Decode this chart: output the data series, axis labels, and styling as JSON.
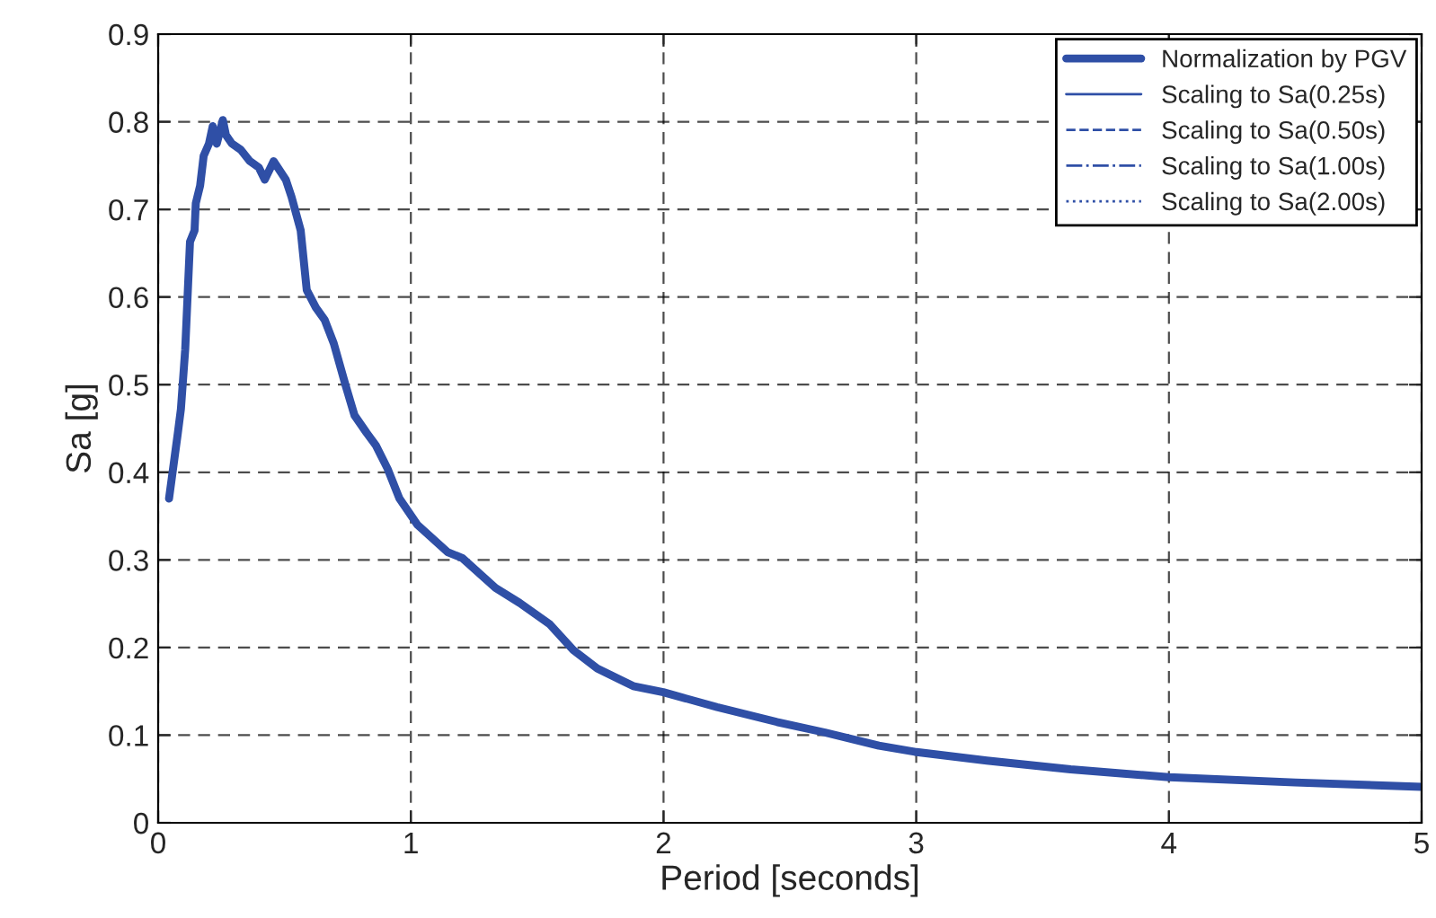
{
  "chart_data": {
    "type": "line",
    "xlabel": "Period [seconds]",
    "ylabel": "Sa [g]",
    "xlim": [
      0,
      5
    ],
    "xticks": [
      0,
      1,
      2,
      3,
      4,
      5
    ],
    "ylim": [
      0,
      0.9
    ],
    "yticks": [
      0,
      0.1,
      0.2,
      0.3,
      0.4,
      0.5,
      0.6,
      0.7,
      0.8,
      0.9
    ],
    "grid": true,
    "legend": "top right",
    "series": [
      {
        "name": "Normalization by PGV",
        "color": "#2f4fa6",
        "line_style": "solid",
        "x": [
          0.043,
          0.078,
          0.09,
          0.107,
          0.126,
          0.144,
          0.149,
          0.166,
          0.18,
          0.201,
          0.216,
          0.232,
          0.256,
          0.268,
          0.292,
          0.327,
          0.363,
          0.398,
          0.422,
          0.457,
          0.505,
          0.528,
          0.564,
          0.588,
          0.624,
          0.659,
          0.695,
          0.742,
          0.777,
          0.825,
          0.861,
          0.908,
          0.955,
          1.026,
          1.145,
          1.204,
          1.335,
          1.43,
          1.548,
          1.643,
          1.738,
          1.88,
          1.999,
          2.212,
          2.449,
          2.639,
          2.852,
          2.994,
          3.279,
          3.611,
          4.0,
          4.5,
          5.0
        ],
        "values": [
          0.37,
          0.445,
          0.472,
          0.54,
          0.663,
          0.676,
          0.707,
          0.727,
          0.761,
          0.775,
          0.795,
          0.775,
          0.802,
          0.785,
          0.775,
          0.768,
          0.755,
          0.748,
          0.734,
          0.755,
          0.734,
          0.714,
          0.676,
          0.608,
          0.588,
          0.574,
          0.547,
          0.499,
          0.465,
          0.445,
          0.431,
          0.404,
          0.37,
          0.34,
          0.309,
          0.302,
          0.268,
          0.251,
          0.227,
          0.197,
          0.176,
          0.156,
          0.149,
          0.132,
          0.115,
          0.103,
          0.088,
          0.081,
          0.071,
          0.061,
          0.052,
          0.046,
          0.041
        ]
      },
      {
        "name": "Scaling to Sa(0.25s)",
        "color": "#2f4fa6",
        "line_style": "solid"
      },
      {
        "name": "Scaling to Sa(0.50s)",
        "color": "#2f4fa6",
        "line_style": "dashed"
      },
      {
        "name": "Scaling to Sa(1.00s)",
        "color": "#2f4fa6",
        "line_style": "dashdot"
      },
      {
        "name": "Scaling to Sa(2.00s)",
        "color": "#2f4fa6",
        "line_style": "dotted"
      }
    ]
  }
}
